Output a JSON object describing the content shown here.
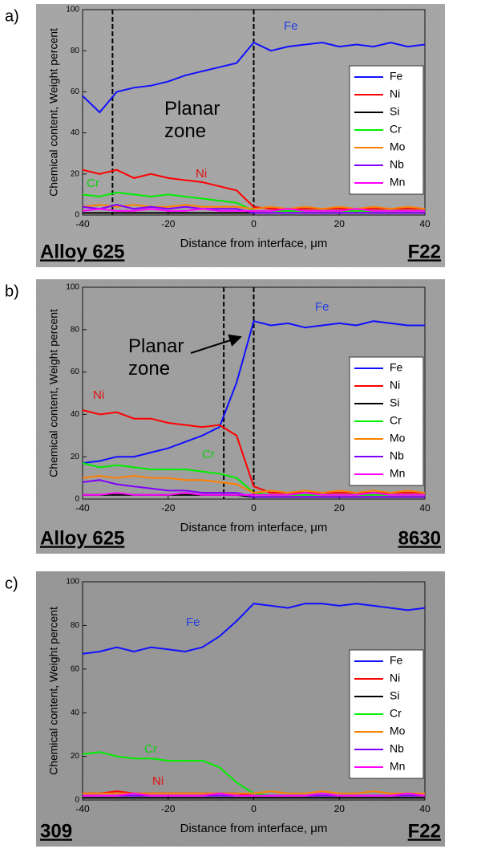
{
  "chart_data": [
    {
      "type": "line",
      "panel_label": "a)",
      "left_label": "Alloy 625",
      "right_label": "F22",
      "x_label": "Distance from interface, μm",
      "y_label": "Chemical content, Weight percent",
      "x": [
        -40,
        -36,
        -32,
        -28,
        -24,
        -20,
        -16,
        -12,
        -8,
        -4,
        0,
        4,
        8,
        12,
        16,
        20,
        24,
        28,
        32,
        36,
        40
      ],
      "xlim": [
        -40,
        40
      ],
      "xticks": [
        -40,
        -20,
        0,
        20,
        40
      ],
      "ylim": [
        0,
        100
      ],
      "yticks": [
        0,
        20,
        40,
        60,
        80,
        100
      ],
      "vlines": [
        -33,
        0
      ],
      "legend": "right",
      "annotations": [
        {
          "text": "Fe",
          "color": "#2340e0"
        },
        {
          "text": "Ni",
          "color": "#e01010"
        },
        {
          "text": "Cr",
          "color": "#10d010"
        },
        {
          "text": "Planar zone",
          "color": "#000000"
        }
      ],
      "series": [
        {
          "name": "Fe",
          "color": "#1010ff",
          "values": [
            58,
            50,
            60,
            62,
            63,
            65,
            68,
            70,
            72,
            74,
            84,
            80,
            82,
            83,
            84,
            82,
            83,
            82,
            84,
            82,
            83
          ]
        },
        {
          "name": "Ni",
          "color": "#ff0000",
          "values": [
            22,
            20,
            22,
            18,
            20,
            18,
            17,
            16,
            14,
            12,
            4,
            3,
            3,
            3,
            3,
            3,
            3,
            3,
            3,
            3,
            3
          ]
        },
        {
          "name": "Si",
          "color": "#000000",
          "values": [
            1,
            1,
            1,
            1,
            1,
            1,
            1,
            1,
            1,
            1,
            1,
            1,
            1,
            1,
            1,
            1,
            1,
            1,
            1,
            1,
            1
          ]
        },
        {
          "name": "Cr",
          "color": "#00ee00",
          "values": [
            10,
            9,
            11,
            10,
            9,
            10,
            9,
            8,
            7,
            6,
            2,
            2,
            2,
            2,
            2,
            2,
            2,
            2,
            2,
            2,
            2
          ]
        },
        {
          "name": "Mo",
          "color": "#ff8000",
          "values": [
            4,
            5,
            4,
            5,
            4,
            4,
            5,
            4,
            4,
            4,
            3,
            4,
            3,
            4,
            3,
            4,
            3,
            4,
            3,
            4,
            3
          ]
        },
        {
          "name": "Nb",
          "color": "#8000ff",
          "values": [
            4,
            3,
            5,
            3,
            4,
            3,
            4,
            3,
            3,
            3,
            1,
            1,
            1,
            1,
            1,
            1,
            1,
            1,
            1,
            1,
            1
          ]
        },
        {
          "name": "Mn",
          "color": "#ff00ff",
          "values": [
            2,
            3,
            2,
            2,
            3,
            2,
            2,
            3,
            2,
            2,
            2,
            2,
            3,
            2,
            2,
            2,
            3,
            2,
            2,
            2,
            2
          ]
        }
      ]
    },
    {
      "type": "line",
      "panel_label": "b)",
      "left_label": "Alloy 625",
      "right_label": "8630",
      "x_label": "Distance from interface, μm",
      "y_label": "Chemical content, Weight percent",
      "x": [
        -40,
        -36,
        -32,
        -28,
        -24,
        -20,
        -16,
        -12,
        -8,
        -4,
        0,
        4,
        8,
        12,
        16,
        20,
        24,
        28,
        32,
        36,
        40
      ],
      "xlim": [
        -40,
        40
      ],
      "xticks": [
        -40,
        -20,
        0,
        20,
        40
      ],
      "ylim": [
        0,
        100
      ],
      "yticks": [
        0,
        20,
        40,
        60,
        80,
        100
      ],
      "vlines": [
        -7,
        0
      ],
      "legend": "right",
      "annotations": [
        {
          "text": "Fe",
          "color": "#2340e0"
        },
        {
          "text": "Ni",
          "color": "#e01010"
        },
        {
          "text": "Cr",
          "color": "#10d010"
        },
        {
          "text": "Planar zone",
          "color": "#000000"
        }
      ],
      "series": [
        {
          "name": "Fe",
          "color": "#1010ff",
          "values": [
            17,
            18,
            20,
            20,
            22,
            24,
            27,
            30,
            34,
            55,
            84,
            82,
            83,
            81,
            82,
            83,
            82,
            84,
            83,
            82,
            82
          ]
        },
        {
          "name": "Ni",
          "color": "#ff0000",
          "values": [
            42,
            40,
            41,
            38,
            38,
            36,
            35,
            34,
            35,
            30,
            6,
            3,
            3,
            3,
            3,
            3,
            3,
            3,
            3,
            3,
            3
          ]
        },
        {
          "name": "Si",
          "color": "#000000",
          "values": [
            2,
            2,
            2,
            2,
            2,
            2,
            2,
            2,
            2,
            2,
            1,
            1,
            1,
            1,
            1,
            1,
            1,
            1,
            1,
            1,
            1
          ]
        },
        {
          "name": "Cr",
          "color": "#00ee00",
          "values": [
            17,
            15,
            16,
            15,
            14,
            14,
            14,
            13,
            12,
            10,
            3,
            2,
            2,
            2,
            2,
            2,
            2,
            2,
            2,
            2,
            2
          ]
        },
        {
          "name": "Mo",
          "color": "#ff8000",
          "values": [
            10,
            11,
            10,
            11,
            10,
            10,
            9,
            9,
            8,
            7,
            3,
            4,
            3,
            4,
            3,
            4,
            3,
            4,
            3,
            4,
            3
          ]
        },
        {
          "name": "Nb",
          "color": "#8000ff",
          "values": [
            8,
            9,
            7,
            6,
            5,
            4,
            4,
            3,
            3,
            3,
            1,
            1,
            1,
            1,
            1,
            1,
            1,
            1,
            1,
            1,
            1
          ]
        },
        {
          "name": "Mn",
          "color": "#ff00ff",
          "values": [
            2,
            2,
            3,
            2,
            2,
            2,
            3,
            2,
            2,
            2,
            2,
            2,
            2,
            3,
            2,
            2,
            2,
            3,
            2,
            2,
            2
          ]
        }
      ]
    },
    {
      "type": "line",
      "panel_label": "c)",
      "left_label": "309",
      "right_label": "F22",
      "x_label": "Distance from interface, μm",
      "y_label": "Chemical content, Weight percent",
      "x": [
        -40,
        -36,
        -32,
        -28,
        -24,
        -20,
        -16,
        -12,
        -8,
        -4,
        0,
        4,
        8,
        12,
        16,
        20,
        24,
        28,
        32,
        36,
        40
      ],
      "xlim": [
        -40,
        40
      ],
      "xticks": [
        -40,
        -20,
        0,
        20,
        40
      ],
      "ylim": [
        0,
        100
      ],
      "yticks": [
        0,
        20,
        40,
        60,
        80,
        100
      ],
      "legend": "right",
      "annotations": [
        {
          "text": "Fe",
          "color": "#2340e0"
        },
        {
          "text": "Cr",
          "color": "#10d010"
        },
        {
          "text": "Ni",
          "color": "#e01010"
        }
      ],
      "series": [
        {
          "name": "Fe",
          "color": "#1010ff",
          "values": [
            67,
            68,
            70,
            68,
            70,
            69,
            68,
            70,
            75,
            82,
            90,
            89,
            88,
            90,
            90,
            89,
            90,
            89,
            88,
            87,
            88
          ]
        },
        {
          "name": "Ni",
          "color": "#ff0000",
          "values": [
            3,
            3,
            4,
            3,
            3,
            3,
            3,
            3,
            3,
            3,
            2,
            2,
            2,
            2,
            2,
            2,
            2,
            2,
            2,
            2,
            2
          ]
        },
        {
          "name": "Si",
          "color": "#000000",
          "values": [
            1,
            1,
            1,
            1,
            1,
            1,
            1,
            1,
            1,
            1,
            1,
            1,
            1,
            1,
            1,
            1,
            1,
            1,
            1,
            1,
            1
          ]
        },
        {
          "name": "Cr",
          "color": "#00ee00",
          "values": [
            21,
            22,
            20,
            19,
            19,
            18,
            18,
            18,
            15,
            8,
            3,
            2,
            2,
            2,
            2,
            2,
            2,
            2,
            2,
            2,
            2
          ]
        },
        {
          "name": "Mo",
          "color": "#ff8000",
          "values": [
            3,
            3,
            3,
            3,
            3,
            3,
            3,
            3,
            3,
            3,
            3,
            4,
            3,
            3,
            4,
            3,
            3,
            4,
            3,
            3,
            3
          ]
        },
        {
          "name": "Nb",
          "color": "#8000ff",
          "values": [
            2,
            2,
            2,
            2,
            2,
            2,
            2,
            2,
            2,
            2,
            2,
            2,
            2,
            2,
            2,
            2,
            2,
            2,
            2,
            2,
            2
          ]
        },
        {
          "name": "Mn",
          "color": "#ff00ff",
          "values": [
            2,
            2,
            2,
            3,
            2,
            2,
            2,
            2,
            3,
            2,
            2,
            2,
            2,
            2,
            3,
            2,
            2,
            2,
            2,
            3,
            2
          ]
        }
      ]
    }
  ]
}
